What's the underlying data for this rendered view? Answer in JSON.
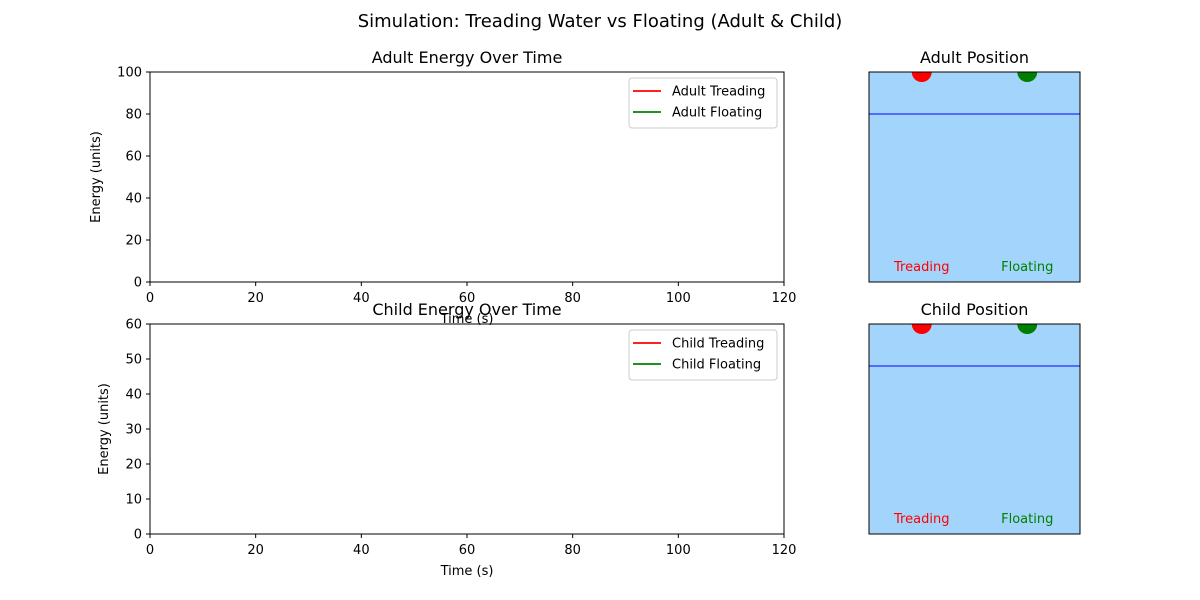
{
  "figure": {
    "suptitle": "Simulation: Treading Water vs Floating (Adult & Child)"
  },
  "chart_data": [
    {
      "id": "adult-energy",
      "type": "line",
      "title": "Adult Energy Over Time",
      "xlabel": "Time (s)",
      "ylabel": "Energy (units)",
      "xlim": [
        0,
        120
      ],
      "ylim": [
        0,
        100
      ],
      "xticks": [
        0,
        20,
        40,
        60,
        80,
        100,
        120
      ],
      "yticks": [
        0,
        20,
        40,
        60,
        80,
        100
      ],
      "grid": false,
      "legend_position": "top-right",
      "series": [
        {
          "name": "Adult Treading",
          "color": "#ff0000",
          "x": [],
          "y": []
        },
        {
          "name": "Adult Floating",
          "color": "#008000",
          "x": [],
          "y": []
        }
      ]
    },
    {
      "id": "child-energy",
      "type": "line",
      "title": "Child Energy Over Time",
      "xlabel": "Time (s)",
      "ylabel": "Energy (units)",
      "xlim": [
        0,
        120
      ],
      "ylim": [
        0,
        60
      ],
      "xticks": [
        0,
        20,
        40,
        60,
        80,
        100,
        120
      ],
      "yticks": [
        0,
        10,
        20,
        30,
        40,
        50,
        60
      ],
      "grid": false,
      "legend_position": "top-right",
      "series": [
        {
          "name": "Child Treading",
          "color": "#ff0000",
          "x": [],
          "y": []
        },
        {
          "name": "Child Floating",
          "color": "#008000",
          "x": [],
          "y": []
        }
      ]
    },
    {
      "id": "adult-position",
      "type": "scatter",
      "title": "Adult Position",
      "background_color": "#a3d4fc",
      "water_line_color": "#0000ff",
      "water_line_level": 0.8,
      "markers": [
        {
          "label": "Treading",
          "color": "#ff0000",
          "x": 0.25,
          "y": 1.0
        },
        {
          "label": "Floating",
          "color": "#008000",
          "x": 0.75,
          "y": 1.0
        }
      ]
    },
    {
      "id": "child-position",
      "type": "scatter",
      "title": "Child Position",
      "background_color": "#a3d4fc",
      "water_line_color": "#0000ff",
      "water_line_level": 0.8,
      "markers": [
        {
          "label": "Treading",
          "color": "#ff0000",
          "x": 0.25,
          "y": 1.0
        },
        {
          "label": "Floating",
          "color": "#008000",
          "x": 0.75,
          "y": 1.0
        }
      ]
    }
  ]
}
